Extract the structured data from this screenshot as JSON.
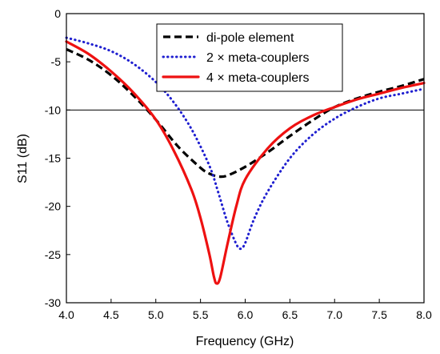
{
  "chart_data": {
    "type": "line",
    "title": "",
    "xlabel": "Frequency (GHz)",
    "ylabel": "S11 (dB)",
    "xlim": [
      4.0,
      8.0
    ],
    "ylim": [
      -30,
      0
    ],
    "xticks": [
      4.0,
      4.5,
      5.0,
      5.5,
      6.0,
      6.5,
      7.0,
      7.5,
      8.0
    ],
    "xtick_labels": [
      "4.0",
      "4.5",
      "5.0",
      "5.5",
      "6.0",
      "6.5",
      "7.0",
      "7.5",
      "8.0"
    ],
    "yticks": [
      0,
      -5,
      -10,
      -15,
      -20,
      -25,
      -30
    ],
    "ytick_labels": [
      "0",
      "-5",
      "-10",
      "-15",
      "-20",
      "-25",
      "-30"
    ],
    "grid": false,
    "reference_line": {
      "y": -10,
      "color": "#000000"
    },
    "legend": {
      "placement": "top-right"
    },
    "series": [
      {
        "name": "di-pole element",
        "color": "#000000",
        "style": "dashed",
        "x": [
          4.0,
          4.25,
          4.5,
          4.75,
          5.0,
          5.25,
          5.5,
          5.6,
          5.7,
          5.8,
          6.0,
          6.25,
          6.5,
          6.75,
          7.0,
          7.25,
          7.5,
          7.75,
          8.0
        ],
        "y": [
          -3.7,
          -4.8,
          -6.4,
          -8.5,
          -11.0,
          -13.8,
          -16.0,
          -16.6,
          -16.9,
          -16.8,
          -15.9,
          -14.4,
          -12.7,
          -11.1,
          -9.7,
          -8.8,
          -8.1,
          -7.5,
          -6.8
        ]
      },
      {
        "name": "2 × meta-couplers",
        "color": "#1f1fd0",
        "style": "dotted",
        "x": [
          4.0,
          4.25,
          4.5,
          4.75,
          5.0,
          5.2,
          5.4,
          5.6,
          5.7,
          5.8,
          5.9,
          5.95,
          6.0,
          6.1,
          6.25,
          6.5,
          6.75,
          7.0,
          7.25,
          7.5,
          7.75,
          8.0
        ],
        "y": [
          -2.5,
          -3.1,
          -3.9,
          -5.2,
          -7.1,
          -9.2,
          -12.0,
          -15.8,
          -18.6,
          -21.6,
          -23.9,
          -24.4,
          -23.8,
          -21.3,
          -18.5,
          -15.0,
          -12.6,
          -10.9,
          -9.7,
          -8.8,
          -8.3,
          -7.8
        ]
      },
      {
        "name": "4 × meta-couplers",
        "color": "#ee1111",
        "style": "solid",
        "x": [
          4.0,
          4.25,
          4.5,
          4.75,
          5.0,
          5.2,
          5.4,
          5.5,
          5.6,
          5.65,
          5.68,
          5.72,
          5.8,
          5.9,
          6.0,
          6.25,
          6.5,
          6.75,
          7.0,
          7.25,
          7.5,
          7.75,
          8.0
        ],
        "y": [
          -2.9,
          -4.2,
          -6.0,
          -8.2,
          -11.0,
          -14.2,
          -18.3,
          -21.2,
          -25.0,
          -27.3,
          -28.0,
          -27.4,
          -24.0,
          -20.0,
          -17.2,
          -14.0,
          -11.9,
          -10.6,
          -9.7,
          -8.9,
          -8.3,
          -7.7,
          -7.2
        ]
      }
    ]
  }
}
